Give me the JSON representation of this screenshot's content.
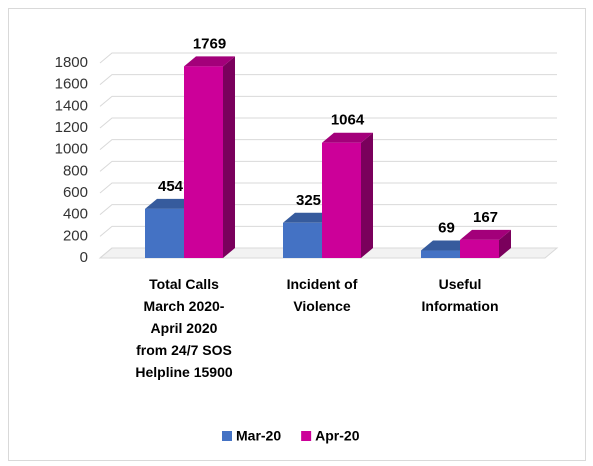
{
  "chart_data": {
    "type": "bar3d",
    "categories": [
      [
        "Total Calls",
        "March 2020-",
        "April 2020",
        "from  24/7 SOS",
        "Helpline 15900"
      ],
      [
        "Incident of",
        "Violence"
      ],
      [
        "Useful",
        "Information"
      ]
    ],
    "series": [
      {
        "name": "Mar-20",
        "color": "#4472c4",
        "values": [
          454,
          325,
          69
        ]
      },
      {
        "name": "Apr-20",
        "color": "#cc0099",
        "values": [
          1769,
          1064,
          167
        ]
      }
    ],
    "ylim": [
      0,
      1800
    ],
    "yticks": [
      0,
      200,
      400,
      600,
      800,
      1000,
      1200,
      1400,
      1600,
      1800
    ],
    "grid": true,
    "legend": "bottom"
  }
}
